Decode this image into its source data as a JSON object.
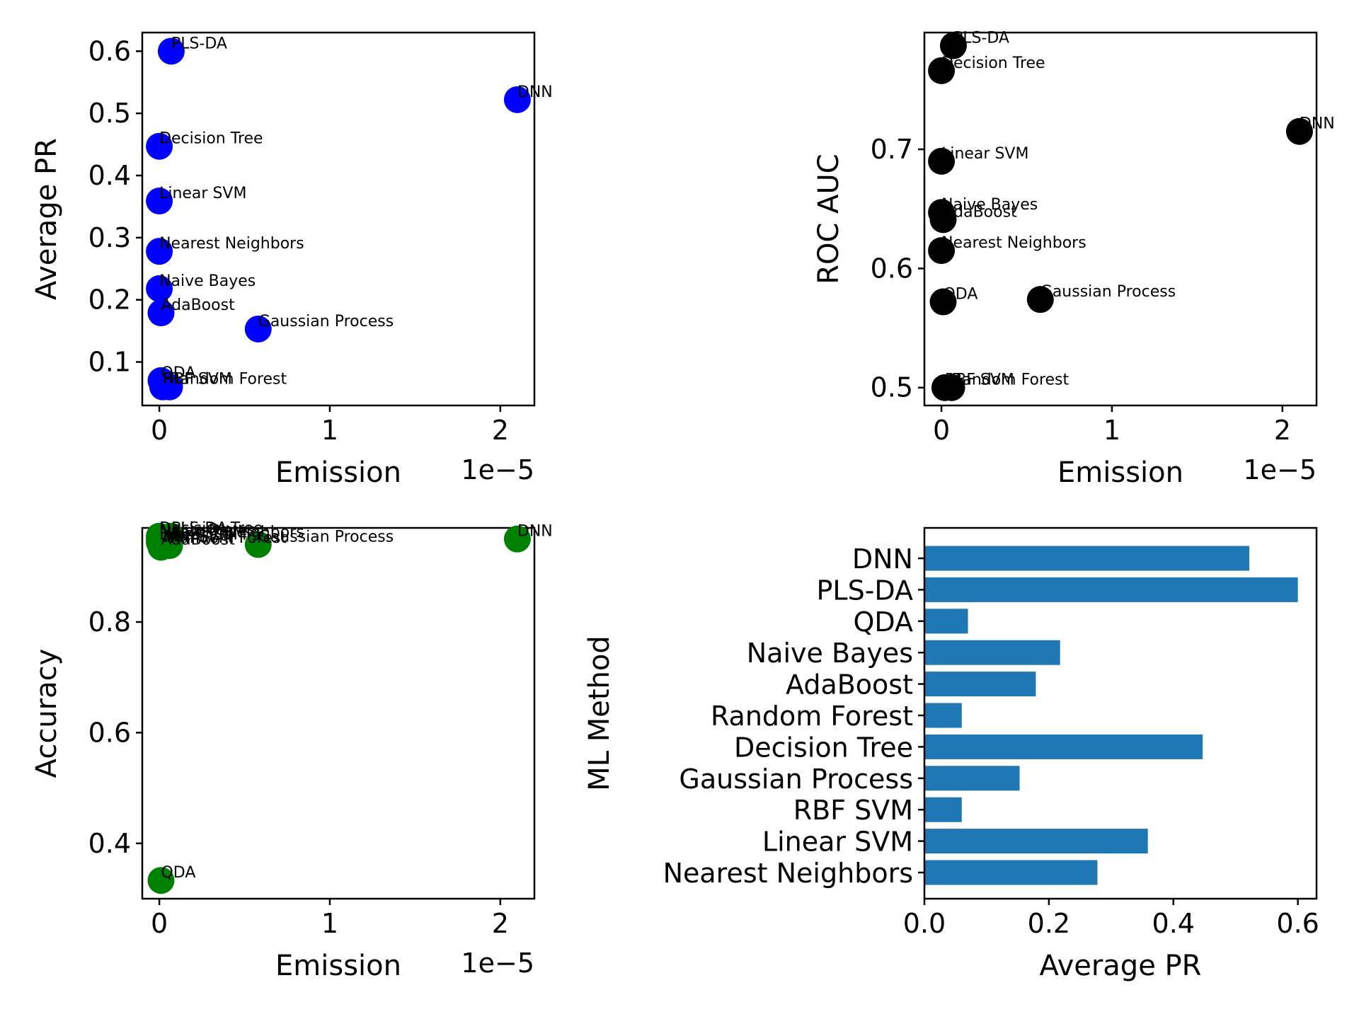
{
  "chart_data": [
    {
      "type": "scatter",
      "xlabel": "Emission",
      "ylabel": "Average PR",
      "x_offset_label": "1e−5",
      "color": "#0000ff",
      "xlim": [
        -0.1,
        2.2
      ],
      "ylim": [
        0.03,
        0.63
      ],
      "xticks": [
        0,
        1,
        2
      ],
      "yticks": [
        0.1,
        0.2,
        0.3,
        0.4,
        0.5,
        0.6
      ],
      "points": [
        {
          "label": "Nearest Neighbors",
          "x": 0.0,
          "y": 0.278
        },
        {
          "label": "Linear SVM",
          "x": 0.0,
          "y": 0.359
        },
        {
          "label": "RBF SVM",
          "x": 0.02,
          "y": 0.06
        },
        {
          "label": "Gaussian Process",
          "x": 0.58,
          "y": 0.153
        },
        {
          "label": "Decision Tree",
          "x": 0.0,
          "y": 0.447
        },
        {
          "label": "Random Forest",
          "x": 0.06,
          "y": 0.06
        },
        {
          "label": "AdaBoost",
          "x": 0.01,
          "y": 0.179
        },
        {
          "label": "Naive Bayes",
          "x": 0.0,
          "y": 0.218
        },
        {
          "label": "QDA",
          "x": 0.01,
          "y": 0.07
        },
        {
          "label": "PLS-DA",
          "x": 0.07,
          "y": 0.6
        },
        {
          "label": "DNN",
          "x": 2.1,
          "y": 0.522
        }
      ]
    },
    {
      "type": "scatter",
      "xlabel": "Emission",
      "ylabel": "ROC AUC",
      "x_offset_label": "1e−5",
      "color": "#000000",
      "xlim": [
        -0.1,
        2.2
      ],
      "ylim": [
        0.485,
        0.798
      ],
      "xticks": [
        0,
        1,
        2
      ],
      "yticks": [
        0.5,
        0.6,
        0.7
      ],
      "points": [
        {
          "label": "Nearest Neighbors",
          "x": 0.0,
          "y": 0.615
        },
        {
          "label": "Linear SVM",
          "x": 0.0,
          "y": 0.69
        },
        {
          "label": "RBF SVM",
          "x": 0.02,
          "y": 0.5
        },
        {
          "label": "Gaussian Process",
          "x": 0.58,
          "y": 0.574
        },
        {
          "label": "Decision Tree",
          "x": 0.0,
          "y": 0.766
        },
        {
          "label": "Random Forest",
          "x": 0.06,
          "y": 0.5
        },
        {
          "label": "AdaBoost",
          "x": 0.01,
          "y": 0.641
        },
        {
          "label": "Naive Bayes",
          "x": 0.0,
          "y": 0.647
        },
        {
          "label": "QDA",
          "x": 0.01,
          "y": 0.572
        },
        {
          "label": "PLS-DA",
          "x": 0.07,
          "y": 0.787
        },
        {
          "label": "DNN",
          "x": 2.1,
          "y": 0.715
        }
      ]
    },
    {
      "type": "scatter",
      "xlabel": "Emission",
      "ylabel": "Accuracy",
      "x_offset_label": "1e−5",
      "color": "#008000",
      "xlim": [
        -0.1,
        2.2
      ],
      "ylim": [
        0.3,
        0.97
      ],
      "xticks": [
        0,
        1,
        2
      ],
      "yticks": [
        0.4,
        0.6,
        0.8
      ],
      "points": [
        {
          "label": "Nearest Neighbors",
          "x": 0.0,
          "y": 0.948
        },
        {
          "label": "Linear SVM",
          "x": 0.0,
          "y": 0.944
        },
        {
          "label": "RBF SVM",
          "x": 0.02,
          "y": 0.94
        },
        {
          "label": "Gaussian Process",
          "x": 0.58,
          "y": 0.94
        },
        {
          "label": "Decision Tree",
          "x": 0.0,
          "y": 0.955
        },
        {
          "label": "Random Forest",
          "x": 0.06,
          "y": 0.938
        },
        {
          "label": "AdaBoost",
          "x": 0.01,
          "y": 0.935
        },
        {
          "label": "Naive Bayes",
          "x": 0.0,
          "y": 0.952
        },
        {
          "label": "QDA",
          "x": 0.01,
          "y": 0.333
        },
        {
          "label": "PLS-DA",
          "x": 0.07,
          "y": 0.955
        },
        {
          "label": "DNN",
          "x": 2.1,
          "y": 0.95
        }
      ]
    },
    {
      "type": "bar",
      "orientation": "horizontal",
      "xlabel": "Average PR",
      "ylabel": "ML Method",
      "color": "#1f77b4",
      "xlim": [
        0,
        0.63
      ],
      "xticks": [
        "0.0",
        "0.2",
        "0.4",
        "0.6"
      ],
      "categories": [
        "DNN",
        "PLS-DA",
        "QDA",
        "Naive Bayes",
        "AdaBoost",
        "Random Forest",
        "Decision Tree",
        "Gaussian Process",
        "RBF SVM",
        "Linear SVM",
        "Nearest Neighbors"
      ],
      "values": [
        0.522,
        0.6,
        0.07,
        0.218,
        0.179,
        0.06,
        0.447,
        0.153,
        0.06,
        0.359,
        0.278
      ]
    }
  ]
}
